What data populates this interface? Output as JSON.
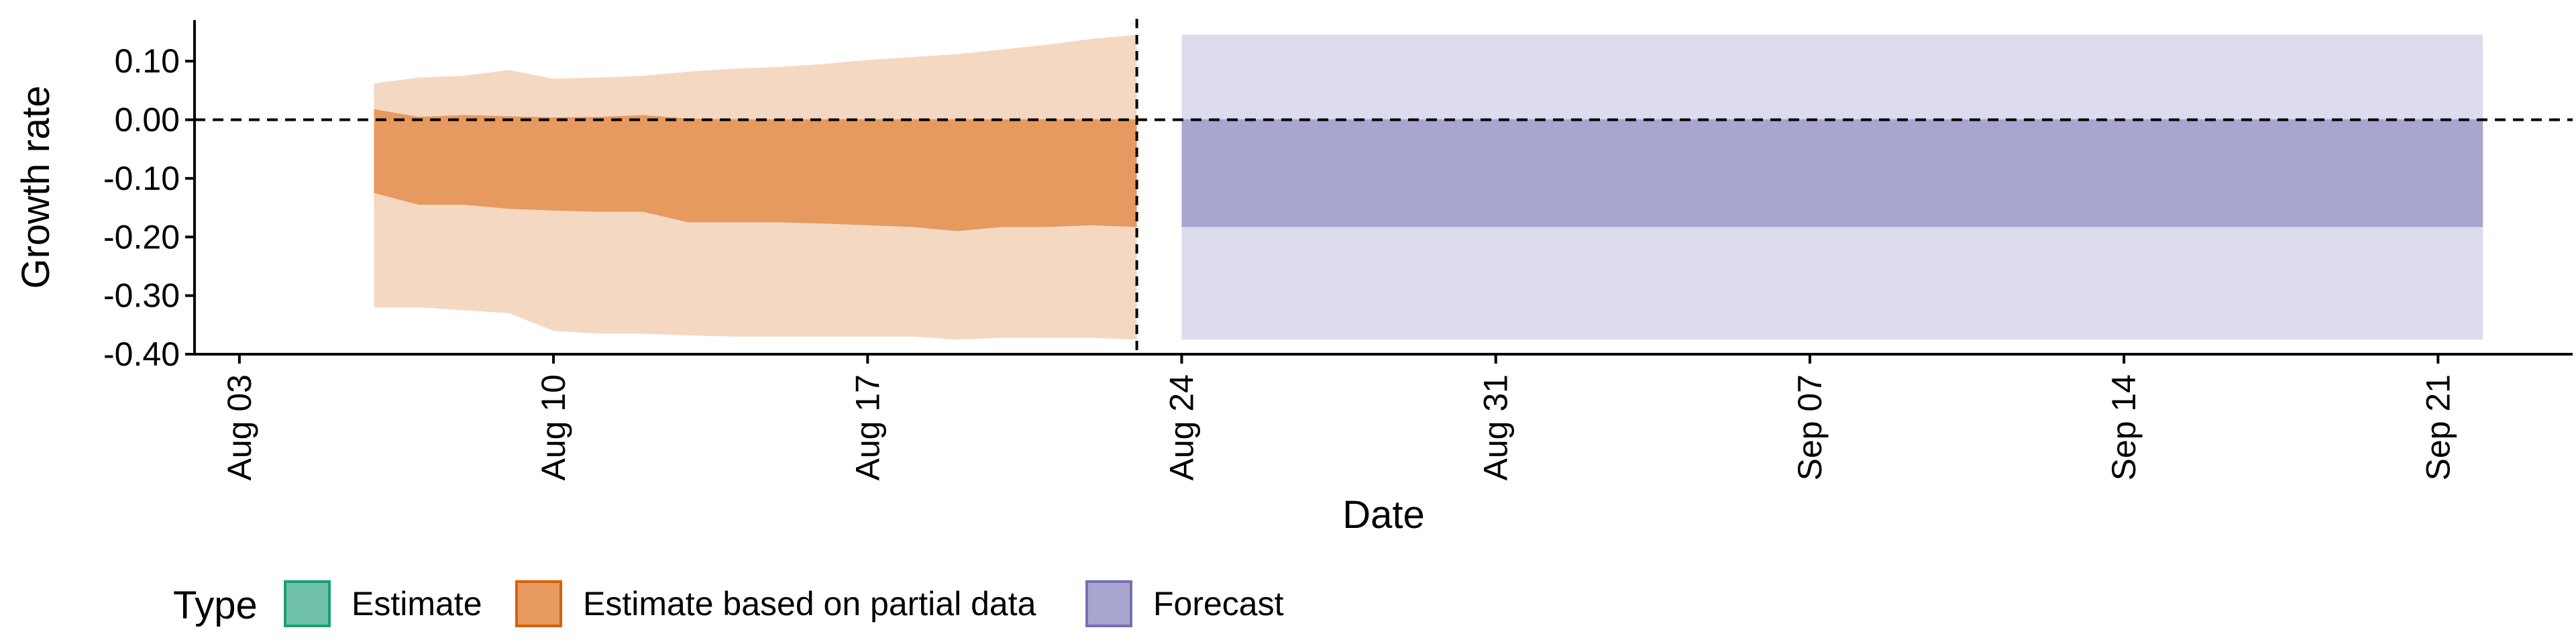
{
  "chart_data": {
    "type": "area",
    "xlabel": "Date",
    "ylabel": "Growth rate",
    "ylim": [
      -0.4,
      0.17
    ],
    "xlim": [
      "2023-08-02",
      "2023-09-24"
    ],
    "y_ticks": [
      {
        "value": 0.1,
        "label": "0.10"
      },
      {
        "value": 0.0,
        "label": "0.00"
      },
      {
        "value": -0.1,
        "label": "-0.10"
      },
      {
        "value": -0.2,
        "label": "-0.20"
      },
      {
        "value": -0.3,
        "label": "-0.30"
      },
      {
        "value": -0.4,
        "label": "-0.40"
      }
    ],
    "x_ticks": [
      {
        "date": "2023-08-03",
        "label": "Aug 03"
      },
      {
        "date": "2023-08-10",
        "label": "Aug 10"
      },
      {
        "date": "2023-08-17",
        "label": "Aug 17"
      },
      {
        "date": "2023-08-24",
        "label": "Aug 24"
      },
      {
        "date": "2023-08-31",
        "label": "Aug 31"
      },
      {
        "date": "2023-09-07",
        "label": "Sep 07"
      },
      {
        "date": "2023-09-14",
        "label": "Sep 14"
      },
      {
        "date": "2023-09-21",
        "label": "Sep 21"
      }
    ],
    "reference_lines": {
      "horizontal_y": 0.0,
      "vertical_x": "2023-08-23"
    },
    "grid": false,
    "series": [
      {
        "name": "Estimate based on partial data",
        "color_inner": "#E69A5F",
        "color_outer": "#F5D8C2",
        "x": [
          "2023-08-06",
          "2023-08-07",
          "2023-08-08",
          "2023-08-09",
          "2023-08-10",
          "2023-08-11",
          "2023-08-12",
          "2023-08-13",
          "2023-08-14",
          "2023-08-15",
          "2023-08-16",
          "2023-08-17",
          "2023-08-18",
          "2023-08-19",
          "2023-08-20",
          "2023-08-21",
          "2023-08-22",
          "2023-08-23"
        ],
        "outer_lower": [
          -0.32,
          -0.32,
          -0.325,
          -0.33,
          -0.36,
          -0.365,
          -0.365,
          -0.368,
          -0.37,
          -0.37,
          -0.37,
          -0.37,
          -0.37,
          -0.375,
          -0.372,
          -0.372,
          -0.372,
          -0.375
        ],
        "inner_lower": [
          -0.125,
          -0.145,
          -0.145,
          -0.152,
          -0.155,
          -0.157,
          -0.157,
          -0.175,
          -0.175,
          -0.175,
          -0.177,
          -0.18,
          -0.183,
          -0.19,
          -0.183,
          -0.183,
          -0.18,
          -0.183
        ],
        "inner_upper": [
          0.018,
          0.005,
          0.008,
          0.006,
          0.004,
          0.005,
          0.008,
          0.002,
          0.001,
          0.001,
          0.001,
          0.001,
          0.001,
          0.001,
          0.001,
          0.001,
          0.001,
          0.001
        ],
        "outer_upper": [
          0.062,
          0.072,
          0.075,
          0.085,
          0.07,
          0.072,
          0.075,
          0.082,
          0.087,
          0.09,
          0.095,
          0.102,
          0.107,
          0.112,
          0.12,
          0.128,
          0.138,
          0.145
        ]
      },
      {
        "name": "Forecast",
        "color_inner": "#A8A5D0",
        "color_outer": "#DDDCEC",
        "x": [
          "2023-08-24",
          "2023-09-22"
        ],
        "outer_lower": [
          -0.375,
          -0.375
        ],
        "inner_lower": [
          -0.183,
          -0.183
        ],
        "inner_upper": [
          0.001,
          0.001
        ],
        "outer_upper": [
          0.145,
          0.145
        ]
      }
    ]
  },
  "legend": {
    "title": "Type",
    "items": [
      {
        "label": "Estimate",
        "fill": "#6FC2A9",
        "stroke": "#1B9E77"
      },
      {
        "label": "Estimate based on partial data",
        "fill": "#E69A5F",
        "stroke": "#D95F02"
      },
      {
        "label": "Forecast",
        "fill": "#A8A5D0",
        "stroke": "#7570B3"
      }
    ]
  }
}
